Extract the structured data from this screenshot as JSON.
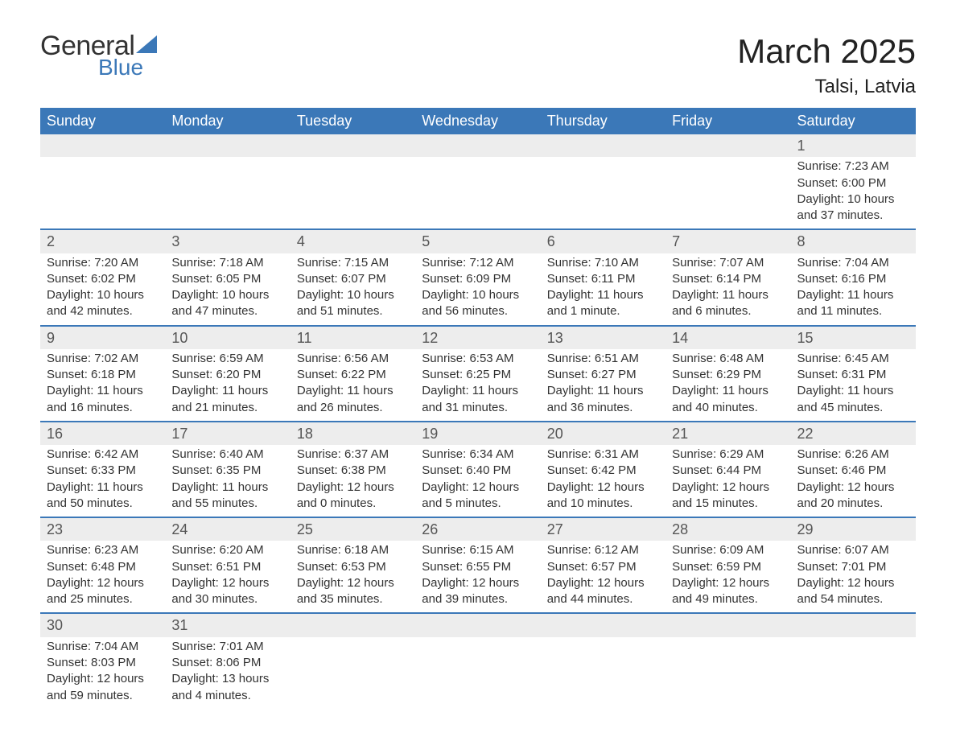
{
  "brand": {
    "line1": "General",
    "line2": "Blue"
  },
  "title": "March 2025",
  "location": "Talsi, Latvia",
  "colors": {
    "header_bg": "#3b78b8",
    "header_text": "#ffffff",
    "daynum_bg": "#ededed",
    "row_border": "#3b78b8",
    "text": "#333333",
    "page_bg": "#ffffff"
  },
  "fonts": {
    "title_size_pt": 42,
    "location_size_pt": 24,
    "header_size_pt": 18,
    "cell_size_pt": 15
  },
  "weekdays": [
    "Sunday",
    "Monday",
    "Tuesday",
    "Wednesday",
    "Thursday",
    "Friday",
    "Saturday"
  ],
  "weeks": [
    [
      null,
      null,
      null,
      null,
      null,
      null,
      {
        "n": "1",
        "sr": "Sunrise: 7:23 AM",
        "ss": "Sunset: 6:00 PM",
        "d1": "Daylight: 10 hours",
        "d2": "and 37 minutes."
      }
    ],
    [
      {
        "n": "2",
        "sr": "Sunrise: 7:20 AM",
        "ss": "Sunset: 6:02 PM",
        "d1": "Daylight: 10 hours",
        "d2": "and 42 minutes."
      },
      {
        "n": "3",
        "sr": "Sunrise: 7:18 AM",
        "ss": "Sunset: 6:05 PM",
        "d1": "Daylight: 10 hours",
        "d2": "and 47 minutes."
      },
      {
        "n": "4",
        "sr": "Sunrise: 7:15 AM",
        "ss": "Sunset: 6:07 PM",
        "d1": "Daylight: 10 hours",
        "d2": "and 51 minutes."
      },
      {
        "n": "5",
        "sr": "Sunrise: 7:12 AM",
        "ss": "Sunset: 6:09 PM",
        "d1": "Daylight: 10 hours",
        "d2": "and 56 minutes."
      },
      {
        "n": "6",
        "sr": "Sunrise: 7:10 AM",
        "ss": "Sunset: 6:11 PM",
        "d1": "Daylight: 11 hours",
        "d2": "and 1 minute."
      },
      {
        "n": "7",
        "sr": "Sunrise: 7:07 AM",
        "ss": "Sunset: 6:14 PM",
        "d1": "Daylight: 11 hours",
        "d2": "and 6 minutes."
      },
      {
        "n": "8",
        "sr": "Sunrise: 7:04 AM",
        "ss": "Sunset: 6:16 PM",
        "d1": "Daylight: 11 hours",
        "d2": "and 11 minutes."
      }
    ],
    [
      {
        "n": "9",
        "sr": "Sunrise: 7:02 AM",
        "ss": "Sunset: 6:18 PM",
        "d1": "Daylight: 11 hours",
        "d2": "and 16 minutes."
      },
      {
        "n": "10",
        "sr": "Sunrise: 6:59 AM",
        "ss": "Sunset: 6:20 PM",
        "d1": "Daylight: 11 hours",
        "d2": "and 21 minutes."
      },
      {
        "n": "11",
        "sr": "Sunrise: 6:56 AM",
        "ss": "Sunset: 6:22 PM",
        "d1": "Daylight: 11 hours",
        "d2": "and 26 minutes."
      },
      {
        "n": "12",
        "sr": "Sunrise: 6:53 AM",
        "ss": "Sunset: 6:25 PM",
        "d1": "Daylight: 11 hours",
        "d2": "and 31 minutes."
      },
      {
        "n": "13",
        "sr": "Sunrise: 6:51 AM",
        "ss": "Sunset: 6:27 PM",
        "d1": "Daylight: 11 hours",
        "d2": "and 36 minutes."
      },
      {
        "n": "14",
        "sr": "Sunrise: 6:48 AM",
        "ss": "Sunset: 6:29 PM",
        "d1": "Daylight: 11 hours",
        "d2": "and 40 minutes."
      },
      {
        "n": "15",
        "sr": "Sunrise: 6:45 AM",
        "ss": "Sunset: 6:31 PM",
        "d1": "Daylight: 11 hours",
        "d2": "and 45 minutes."
      }
    ],
    [
      {
        "n": "16",
        "sr": "Sunrise: 6:42 AM",
        "ss": "Sunset: 6:33 PM",
        "d1": "Daylight: 11 hours",
        "d2": "and 50 minutes."
      },
      {
        "n": "17",
        "sr": "Sunrise: 6:40 AM",
        "ss": "Sunset: 6:35 PM",
        "d1": "Daylight: 11 hours",
        "d2": "and 55 minutes."
      },
      {
        "n": "18",
        "sr": "Sunrise: 6:37 AM",
        "ss": "Sunset: 6:38 PM",
        "d1": "Daylight: 12 hours",
        "d2": "and 0 minutes."
      },
      {
        "n": "19",
        "sr": "Sunrise: 6:34 AM",
        "ss": "Sunset: 6:40 PM",
        "d1": "Daylight: 12 hours",
        "d2": "and 5 minutes."
      },
      {
        "n": "20",
        "sr": "Sunrise: 6:31 AM",
        "ss": "Sunset: 6:42 PM",
        "d1": "Daylight: 12 hours",
        "d2": "and 10 minutes."
      },
      {
        "n": "21",
        "sr": "Sunrise: 6:29 AM",
        "ss": "Sunset: 6:44 PM",
        "d1": "Daylight: 12 hours",
        "d2": "and 15 minutes."
      },
      {
        "n": "22",
        "sr": "Sunrise: 6:26 AM",
        "ss": "Sunset: 6:46 PM",
        "d1": "Daylight: 12 hours",
        "d2": "and 20 minutes."
      }
    ],
    [
      {
        "n": "23",
        "sr": "Sunrise: 6:23 AM",
        "ss": "Sunset: 6:48 PM",
        "d1": "Daylight: 12 hours",
        "d2": "and 25 minutes."
      },
      {
        "n": "24",
        "sr": "Sunrise: 6:20 AM",
        "ss": "Sunset: 6:51 PM",
        "d1": "Daylight: 12 hours",
        "d2": "and 30 minutes."
      },
      {
        "n": "25",
        "sr": "Sunrise: 6:18 AM",
        "ss": "Sunset: 6:53 PM",
        "d1": "Daylight: 12 hours",
        "d2": "and 35 minutes."
      },
      {
        "n": "26",
        "sr": "Sunrise: 6:15 AM",
        "ss": "Sunset: 6:55 PM",
        "d1": "Daylight: 12 hours",
        "d2": "and 39 minutes."
      },
      {
        "n": "27",
        "sr": "Sunrise: 6:12 AM",
        "ss": "Sunset: 6:57 PM",
        "d1": "Daylight: 12 hours",
        "d2": "and 44 minutes."
      },
      {
        "n": "28",
        "sr": "Sunrise: 6:09 AM",
        "ss": "Sunset: 6:59 PM",
        "d1": "Daylight: 12 hours",
        "d2": "and 49 minutes."
      },
      {
        "n": "29",
        "sr": "Sunrise: 6:07 AM",
        "ss": "Sunset: 7:01 PM",
        "d1": "Daylight: 12 hours",
        "d2": "and 54 minutes."
      }
    ],
    [
      {
        "n": "30",
        "sr": "Sunrise: 7:04 AM",
        "ss": "Sunset: 8:03 PM",
        "d1": "Daylight: 12 hours",
        "d2": "and 59 minutes."
      },
      {
        "n": "31",
        "sr": "Sunrise: 7:01 AM",
        "ss": "Sunset: 8:06 PM",
        "d1": "Daylight: 13 hours",
        "d2": "and 4 minutes."
      },
      null,
      null,
      null,
      null,
      null
    ]
  ]
}
